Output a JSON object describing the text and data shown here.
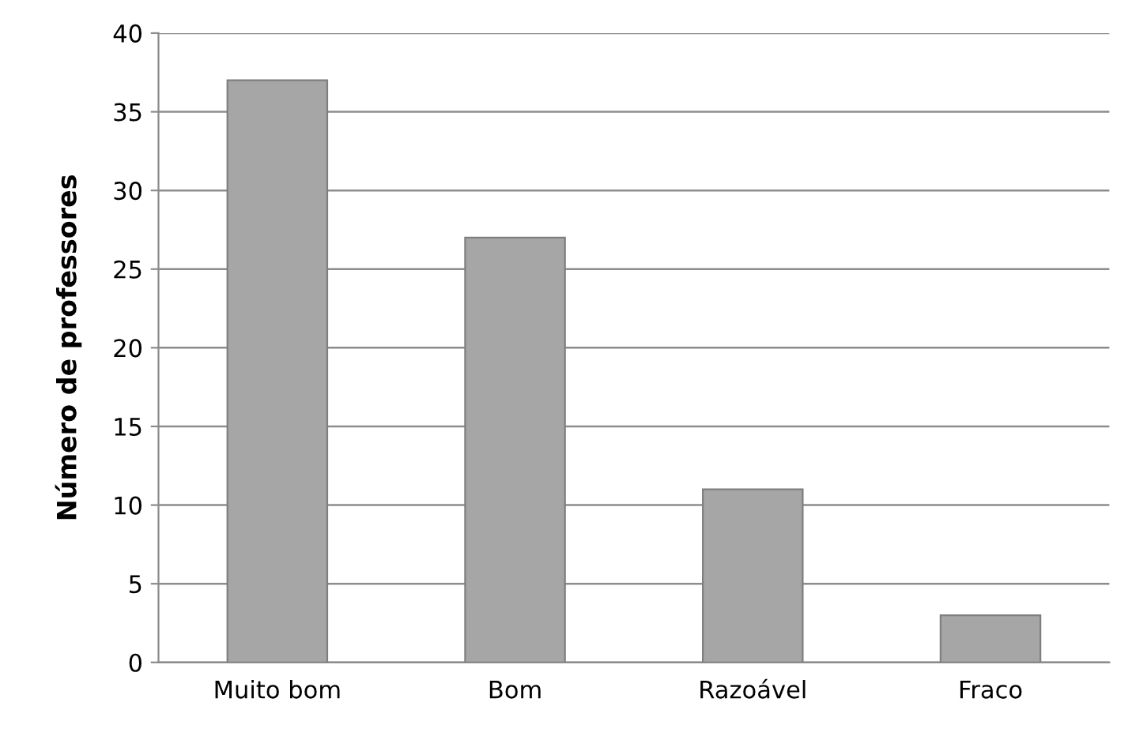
{
  "chart_data": {
    "type": "bar",
    "ylabel": "Número de professores",
    "categories": [
      "Muito bom",
      "Bom",
      "Razoável",
      "Fraco"
    ],
    "values": [
      37,
      27,
      11,
      3
    ],
    "color": "#a6a6a6",
    "ylim": [
      0,
      40
    ],
    "yticks": [
      0,
      5,
      10,
      15,
      20,
      25,
      30,
      35,
      40
    ],
    "grid": "y",
    "legend": false
  }
}
